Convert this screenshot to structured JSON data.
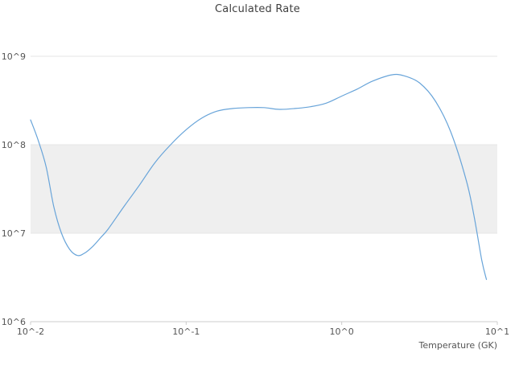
{
  "chart_data": {
    "type": "line",
    "title": "Calculated Rate",
    "xlabel": "Temperature (GK)",
    "ylabel": "",
    "x_scale": "log",
    "y_scale": "log",
    "xlim": [
      0.01,
      10
    ],
    "ylim": [
      1000000,
      1000000000
    ],
    "x_ticks": [
      0.01,
      0.1,
      1,
      10
    ],
    "x_tick_labels": [
      "10^-2",
      "10^-1",
      "10^0",
      "10^1"
    ],
    "y_ticks": [
      1000000,
      10000000,
      100000000,
      1000000000
    ],
    "y_tick_labels": [
      "10^6",
      "10^7",
      "10^8",
      "10^9"
    ],
    "legend": "none",
    "grid": "horizontal-major",
    "bands": [
      {
        "y0": 10000000,
        "y1": 100000000,
        "color": "#efefef"
      }
    ],
    "line_color": "#68a4d9",
    "text_color": "#555555",
    "series": [
      {
        "name": "rate",
        "x": [
          0.01,
          0.0112,
          0.0126,
          0.0141,
          0.0158,
          0.0178,
          0.02,
          0.0224,
          0.0251,
          0.0282,
          0.0316,
          0.0398,
          0.0501,
          0.0631,
          0.0794,
          0.1,
          0.126,
          0.158,
          0.2,
          0.251,
          0.316,
          0.398,
          0.501,
          0.631,
          0.794,
          1.0,
          1.26,
          1.58,
          2.09,
          2.51,
          3.16,
          3.98,
          5.01,
          6.31,
          7.08,
          7.94,
          8.51
        ],
        "y": [
          191000000.0,
          112000000.0,
          56000000.0,
          20000000.0,
          10000000.0,
          6600000.0,
          5600000.0,
          6000000.0,
          7100000.0,
          8900000.0,
          11200000.0,
          20000000.0,
          35000000.0,
          63000000.0,
          100000000.0,
          148000000.0,
          200000000.0,
          240000000.0,
          257000000.0,
          263000000.0,
          263000000.0,
          251000000.0,
          257000000.0,
          269000000.0,
          295000000.0,
          355000000.0,
          427000000.0,
          525000000.0,
          617000000.0,
          603000000.0,
          501000000.0,
          316000000.0,
          141000000.0,
          40000000.0,
          15800000.0,
          5000000.0,
          3000000.0
        ]
      }
    ]
  }
}
